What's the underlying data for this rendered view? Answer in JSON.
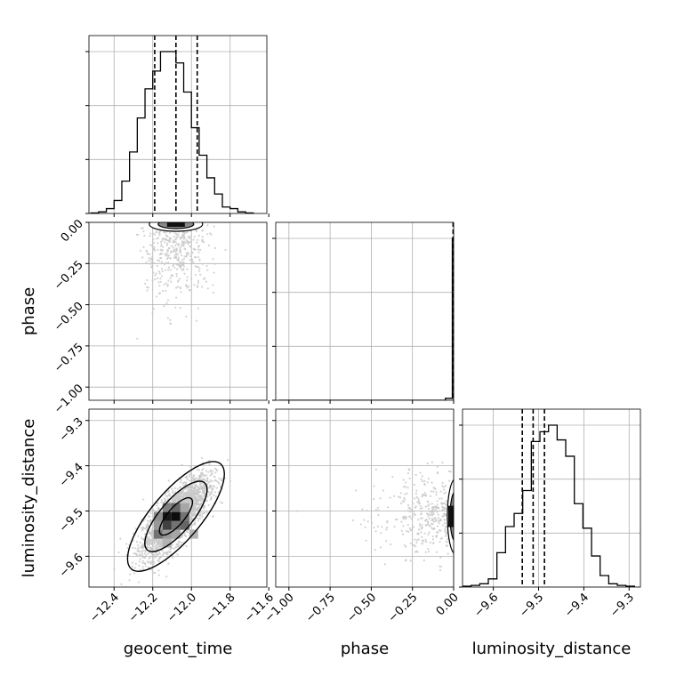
{
  "chart_data": {
    "type": "corner",
    "parameters": [
      "geocent_time",
      "phase",
      "luminosity_distance"
    ],
    "axis_labels": {
      "geocent_time": "geocent_time",
      "phase": "phase",
      "luminosity_distance": "luminosity_distance"
    },
    "ranges": {
      "geocent_time": [
        -12.53,
        -11.61
      ],
      "phase": [
        -1.08,
        0.0
      ],
      "luminosity_distance": [
        -9.668,
        -9.275
      ]
    },
    "ticks": {
      "geocent_time": [
        -12.4,
        -12.2,
        -12.0,
        -11.8,
        -11.6
      ],
      "phase": [
        -1.0,
        -0.75,
        -0.5,
        -0.25,
        0.0
      ],
      "luminosity_distance": [
        -9.6,
        -9.5,
        -9.4,
        -9.3
      ]
    },
    "tick_labels": {
      "geocent_time": [
        "−12.4",
        "−12.2",
        "−12.0",
        "−11.8",
        "−11.6"
      ],
      "phase": [
        "−1.00",
        "−0.75",
        "−0.50",
        "−0.25",
        "0.00"
      ],
      "luminosity_distance": [
        "−9.6",
        "−9.5",
        "−9.4",
        "−9.3"
      ]
    },
    "grid": true,
    "quantiles": {
      "geocent_time": [
        -12.19,
        -12.08,
        -11.97
      ],
      "phase": [
        -0.003,
        -0.002,
        -0.001
      ],
      "luminosity_distance": [
        -9.536,
        -9.512,
        -9.487
      ]
    },
    "histograms": {
      "geocent_time": {
        "bin_edges": [
          -12.52,
          -12.48,
          -12.44,
          -12.4,
          -12.36,
          -12.32,
          -12.28,
          -12.24,
          -12.2,
          -12.16,
          -12.12,
          -12.08,
          -12.04,
          -12.0,
          -11.96,
          -11.92,
          -11.88,
          -11.84,
          -11.8,
          -11.76,
          -11.72,
          -11.68
        ],
        "counts": [
          0.3,
          1,
          3,
          8,
          20,
          38,
          59,
          77,
          88,
          100,
          100,
          93,
          75,
          53,
          36,
          22,
          12,
          4,
          3,
          1,
          0.3
        ]
      },
      "phase": {
        "bin_edges": [
          -1.06,
          -0.05,
          -0.008,
          0.0
        ],
        "counts": [
          0,
          1.2,
          100
        ]
      },
      "luminosity_distance": {
        "bin_edges": [
          -9.668,
          -9.649,
          -9.63,
          -9.611,
          -9.592,
          -9.573,
          -9.554,
          -9.535,
          -9.516,
          -9.497,
          -9.478,
          -9.459,
          -9.44,
          -9.421,
          -9.402,
          -9.383,
          -9.364,
          -9.345,
          -9.326,
          -9.307,
          -9.288
        ],
        "counts": [
          0.5,
          1,
          2,
          5,
          21,
          37,
          45,
          59,
          89,
          95,
          99,
          90,
          80,
          51,
          36,
          19,
          7,
          2,
          1,
          0.5
        ]
      }
    },
    "density_2d": {
      "geocent_time_vs_luminosity_distance": {
        "correlation": 0.75,
        "center": [
          -12.08,
          -9.512
        ]
      },
      "geocent_time_vs_phase": {
        "center": [
          -12.08,
          -0.002
        ]
      },
      "phase_vs_luminosity_distance": {
        "center": [
          -0.002,
          -9.512
        ]
      }
    }
  },
  "colors": {
    "line": "#000000",
    "grid": "#b0b0b0",
    "points": "#c8c8c8",
    "axes": "#000000"
  }
}
